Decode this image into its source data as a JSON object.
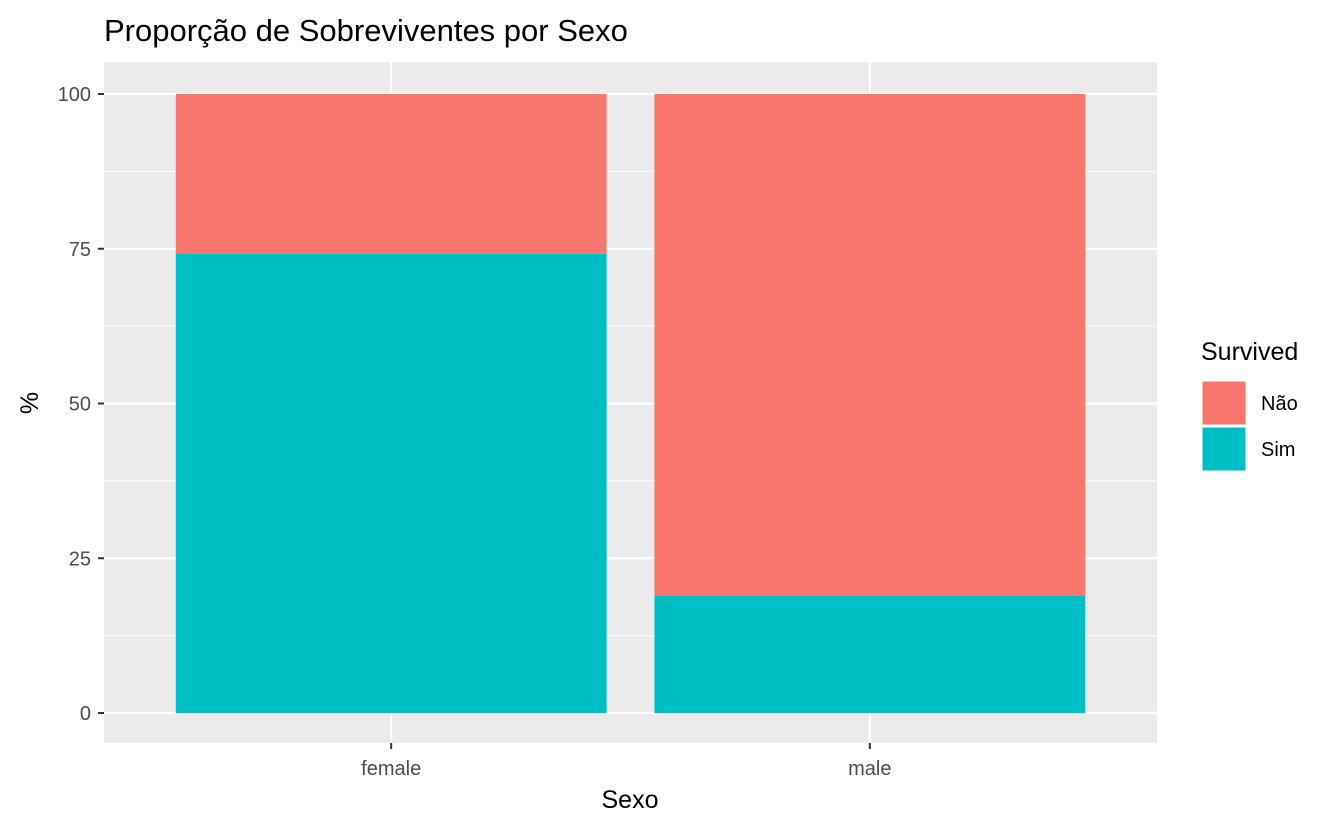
{
  "chart_data": {
    "type": "bar",
    "stacked": true,
    "title": "Proporção de Sobreviventes por Sexo",
    "xlabel": "Sexo",
    "ylabel": "%",
    "categories": [
      "female",
      "male"
    ],
    "ylim": [
      0,
      100
    ],
    "yticks": [
      0,
      25,
      50,
      75,
      100
    ],
    "grid": true,
    "legend": {
      "title": "Survived",
      "position": "right"
    },
    "series": [
      {
        "name": "Sim",
        "values": [
          74.2,
          18.9
        ],
        "color": "#00BFC4"
      },
      {
        "name": "Não",
        "values": [
          25.8,
          81.1
        ],
        "color": "#F8766D"
      }
    ],
    "legend_order": [
      "Não",
      "Sim"
    ],
    "panel_background": "#EBEBEB",
    "grid_color": "#FFFFFF"
  }
}
